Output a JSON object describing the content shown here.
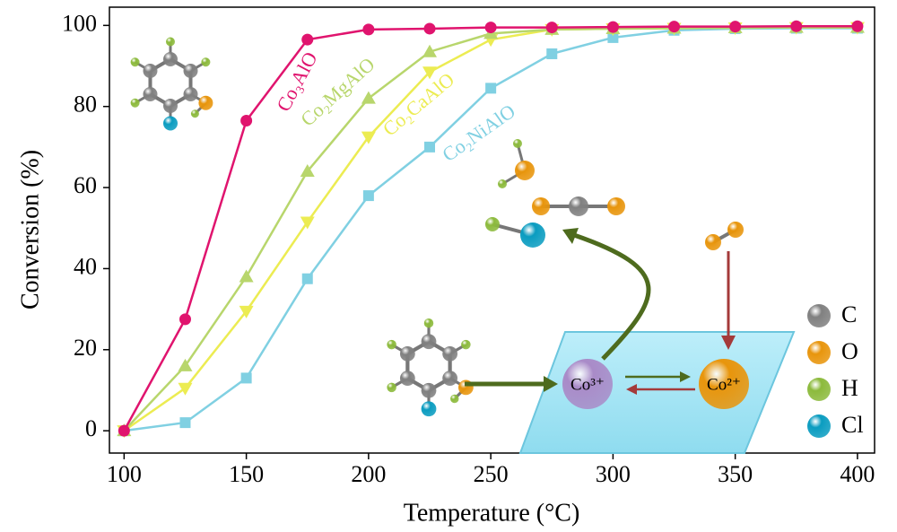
{
  "chart_data": {
    "type": "line",
    "x_label": "Temperature (°C)",
    "y_label": "Conversion (%)",
    "x": [
      100,
      125,
      150,
      175,
      200,
      225,
      250,
      275,
      300,
      325,
      350,
      375,
      400
    ],
    "series": [
      {
        "name": "Co₃AlO",
        "color": "#e0146e",
        "marker": "circle",
        "values": [
          0,
          27.5,
          76.5,
          96.5,
          99,
          99.2,
          99.5,
          99.5,
          99.6,
          99.7,
          99.7,
          99.8,
          99.8
        ]
      },
      {
        "name": "Co₂MgAlO",
        "color": "#b8d66c",
        "marker": "triangle-up",
        "values": [
          0,
          16,
          38,
          64,
          82,
          93.5,
          98,
          99,
          99.2,
          99.3,
          99.4,
          99.5,
          99.5
        ]
      },
      {
        "name": "Co₂CaAlO",
        "color": "#ecec52",
        "marker": "triangle-down",
        "values": [
          0,
          10.5,
          29.5,
          51.5,
          72.5,
          88.5,
          96.5,
          99,
          99.2,
          99.3,
          99.4,
          99.5,
          99.5
        ]
      },
      {
        "name": "Co₂NiAlO",
        "color": "#80d0e2",
        "marker": "square",
        "values": [
          0,
          2,
          13,
          37.5,
          58,
          70,
          84.5,
          93,
          97,
          98.8,
          99.2,
          99.3,
          99.3
        ]
      }
    ],
    "xlim": [
      94,
      407
    ],
    "ylim": [
      -5.5,
      104.5
    ],
    "xticks": [
      100,
      150,
      200,
      250,
      300,
      350,
      400
    ],
    "yticks": [
      0,
      20,
      40,
      60,
      80,
      100
    ],
    "inset_sites": [
      "Co³⁺",
      "Co²⁺"
    ],
    "inset_legend": [
      {
        "label": "C",
        "color": "#808080"
      },
      {
        "label": "O",
        "color": "#e8950c"
      },
      {
        "label": "H",
        "color": "#8cba3c"
      },
      {
        "label": "Cl",
        "color": "#0a9cc0"
      }
    ]
  }
}
